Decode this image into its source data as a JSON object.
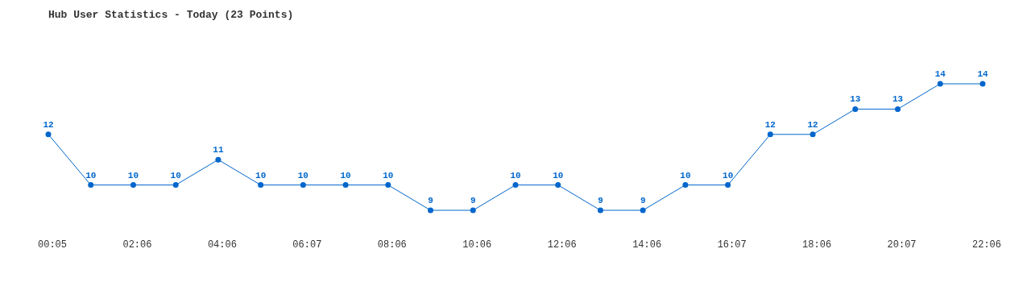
{
  "chart_data": {
    "type": "line",
    "title": "Hub User Statistics - Today (23 Points)",
    "categories": [
      "00:05",
      null,
      "02:06",
      null,
      "04:06",
      null,
      "06:07",
      null,
      "08:06",
      null,
      "10:06",
      null,
      "12:06",
      null,
      "14:06",
      null,
      "16:07",
      null,
      "18:06",
      null,
      "20:07",
      null,
      "22:06"
    ],
    "values": [
      12,
      10,
      10,
      10,
      11,
      10,
      10,
      10,
      10,
      9,
      9,
      10,
      10,
      9,
      9,
      10,
      10,
      12,
      12,
      13,
      13,
      14,
      14
    ],
    "color": "#0066cc",
    "marker": "circle",
    "data_labels": true,
    "grid": false,
    "legend": false
  }
}
